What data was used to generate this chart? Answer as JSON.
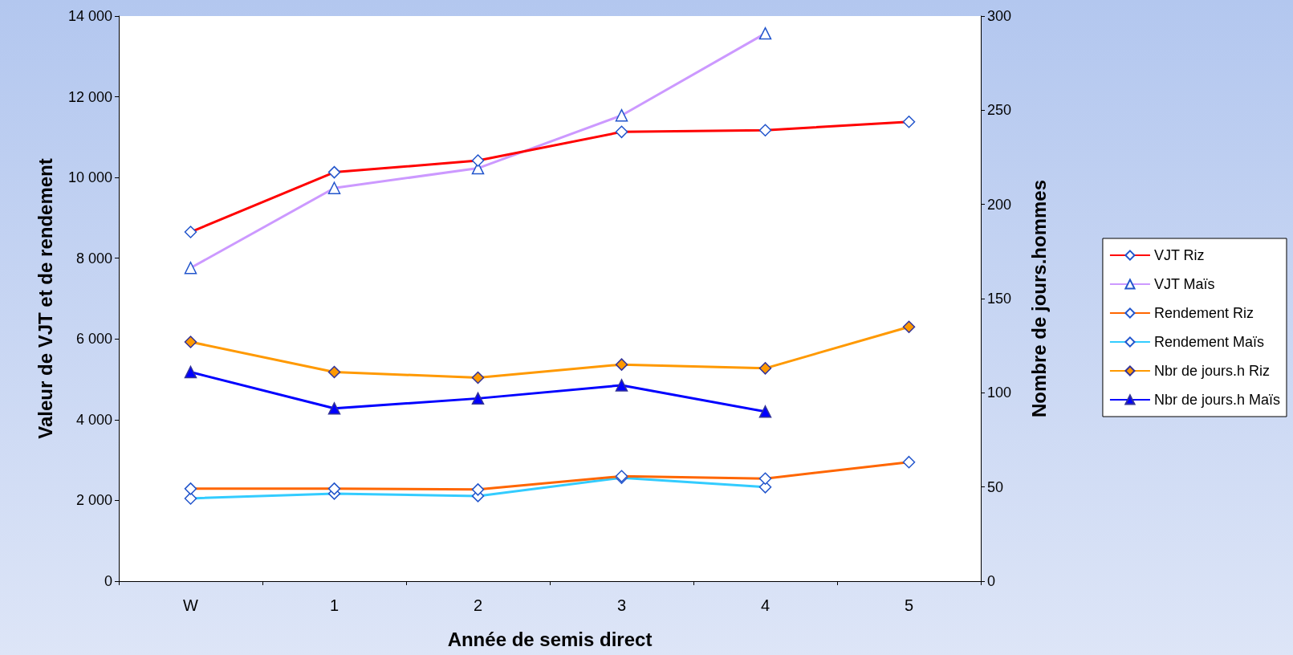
{
  "chart_data": {
    "type": "line",
    "xlabel": "Année de semis direct",
    "ylabel": "Valeur de VJT et de rendement",
    "y2label": "Nombre de jours.hommes",
    "categories": [
      "W",
      "1",
      "2",
      "3",
      "4",
      "5"
    ],
    "series": [
      {
        "name": "VJT Riz",
        "color": "#ff0000",
        "marker": "diamond",
        "values": [
          8650,
          10130,
          10420,
          11130,
          11170,
          11380
        ]
      },
      {
        "name": "VJT Maïs",
        "color": "#cc99ff",
        "marker": "triangle",
        "values": [
          7760,
          9740,
          10230,
          11540,
          13570,
          null
        ]
      },
      {
        "name": "Rendement Riz",
        "color": "#ff6600",
        "marker": "diamond",
        "values": [
          2290,
          2290,
          2270,
          2600,
          2540,
          2950
        ]
      },
      {
        "name": "Rendement Maïs",
        "color": "#33ccff",
        "marker": "diamond",
        "values": [
          2050,
          2170,
          2110,
          2560,
          2330,
          null
        ]
      },
      {
        "name": "Nbr de jours.h Riz",
        "color": "#ff9900",
        "marker": "diamond",
        "axis": "y2",
        "values": [
          127,
          111,
          108,
          115,
          113,
          135
        ]
      },
      {
        "name": "Nbr de jours.h Maïs",
        "color": "#0000ff",
        "marker": "triangle",
        "axis": "y2",
        "values": [
          111,
          91.7,
          97,
          104,
          90,
          null
        ]
      }
    ],
    "ylim": [
      0,
      14000
    ],
    "yticks": [
      0,
      {
        "value": 2000,
        "label": "2 000"
      },
      {
        "value": 4000,
        "label": "4 000"
      },
      {
        "value": 6000,
        "label": "6 000"
      },
      {
        "value": 8000,
        "label": "8 000"
      },
      {
        "value": 10000,
        "label": "10 000"
      },
      {
        "value": 12000,
        "label": "12 000"
      },
      {
        "value": 14000,
        "label": "14 000"
      }
    ],
    "y2lim": [
      0,
      300
    ],
    "y2ticks": [
      0,
      50,
      100,
      150,
      200,
      250,
      300
    ],
    "legend": "right",
    "grid": false
  }
}
